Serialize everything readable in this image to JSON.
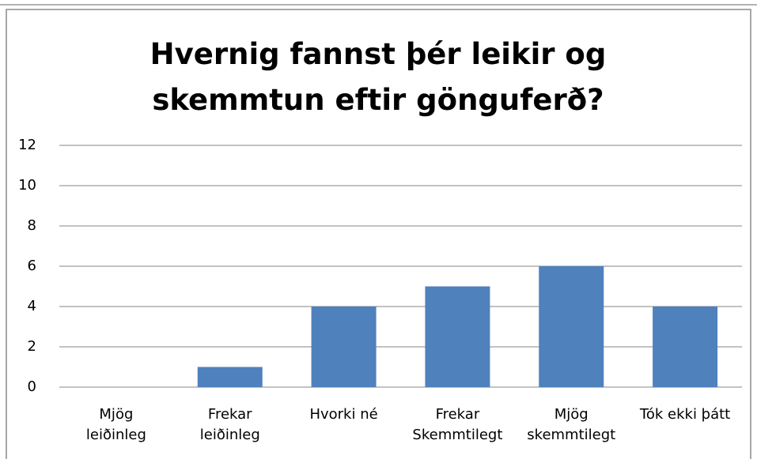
{
  "chart_data": {
    "type": "bar",
    "title": "Hvernig fannst þér leikir og\nskemmtun eftir gönguferð?",
    "categories": [
      "Mjög\nleiðinleg",
      "Frekar\nleiðinleg",
      "Hvorki né",
      "Frekar\nSkemmtilegt",
      "Mjög\nskemmtilegt",
      "Tók ekki þátt"
    ],
    "values": [
      0,
      1,
      4,
      5,
      6,
      4
    ],
    "color": "#4f81bd",
    "ylim": [
      0,
      12
    ],
    "yticks": [
      0,
      2,
      4,
      6,
      8,
      10,
      12
    ],
    "grid": true
  }
}
